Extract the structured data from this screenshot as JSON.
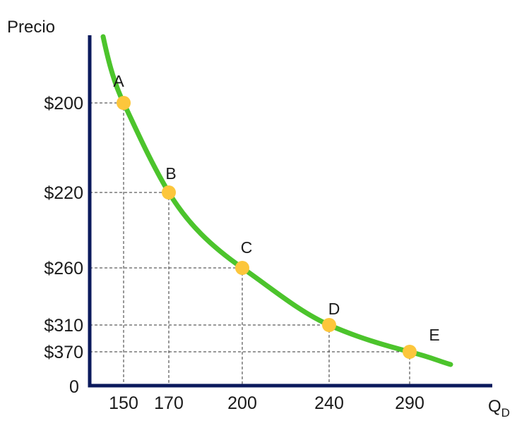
{
  "chart_data": {
    "type": "line",
    "ylabel": "Precio",
    "xlabel_main": "Q",
    "xlabel_sub": "D",
    "origin_label": "0",
    "colors": {
      "curve": "#4cc42c",
      "point": "#fcc63c",
      "axis": "#0b1a5c",
      "guide": "#333333"
    },
    "x_ticks": [
      "150",
      "170",
      "200",
      "240",
      "290"
    ],
    "y_ticks": [
      "$200",
      "$220",
      "$260",
      "$310",
      "$370"
    ],
    "points": [
      {
        "label": "A",
        "q": 150,
        "price": "$200"
      },
      {
        "label": "B",
        "q": 170,
        "price": "$220"
      },
      {
        "label": "C",
        "q": 200,
        "price": "$260"
      },
      {
        "label": "D",
        "q": 240,
        "price": "$310"
      },
      {
        "label": "E",
        "q": 290,
        "price": "$370"
      }
    ]
  }
}
